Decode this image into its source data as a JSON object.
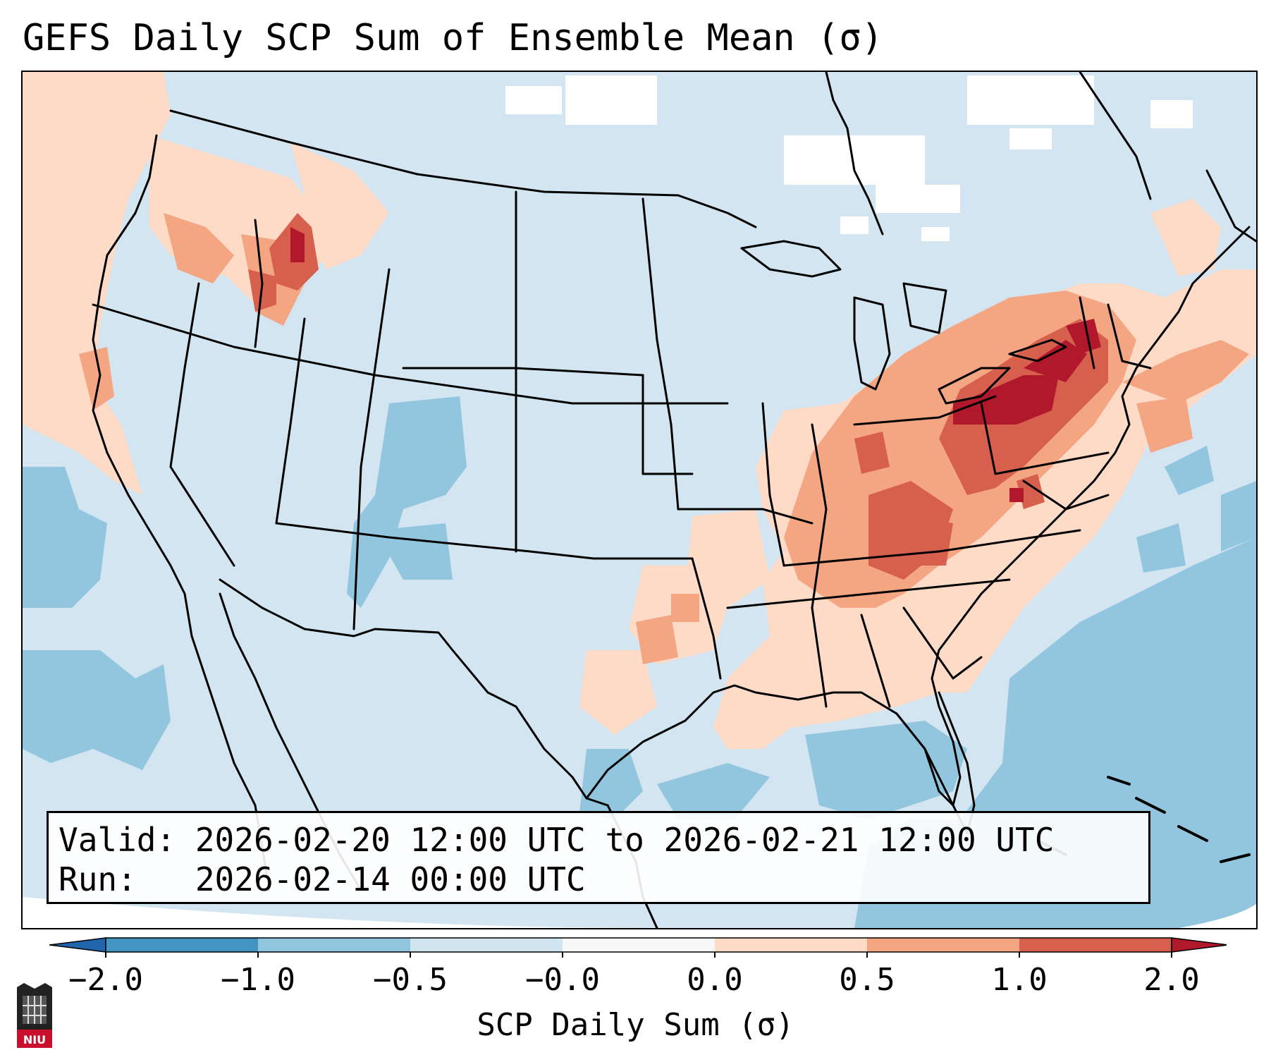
{
  "title": "GEFS Daily SCP Sum of Ensemble Mean (σ)",
  "info": {
    "valid_line": "Valid: 2026-02-20 12:00 UTC to 2026-02-21 12:00 UTC",
    "run_line": "Run:   2026-02-14 00:00 UTC"
  },
  "colorbar": {
    "label": "SCP Daily Sum (σ)",
    "ticks": [
      "−2.0",
      "−1.0",
      "−0.5",
      "−0.0",
      "0.0",
      "0.5",
      "1.0",
      "2.0"
    ],
    "bins": [
      {
        "color": "#4393c3"
      },
      {
        "color": "#92c5de"
      },
      {
        "color": "#d1e5f0"
      },
      {
        "color": "#f7f7f7"
      },
      {
        "color": "#fddbc7"
      },
      {
        "color": "#f4a582"
      },
      {
        "color": "#d6604d"
      }
    ],
    "under_color": "#2166ac",
    "over_color": "#b2182b"
  },
  "colors": {
    "background": "#d2e5f0",
    "light_red": "#fddbc7",
    "mid_red": "#f4a582",
    "red": "#d6604d",
    "dark_red": "#b2182b",
    "blue": "#92c5de",
    "white": "#f7f7f7"
  },
  "logo": {
    "text": "NIU"
  }
}
